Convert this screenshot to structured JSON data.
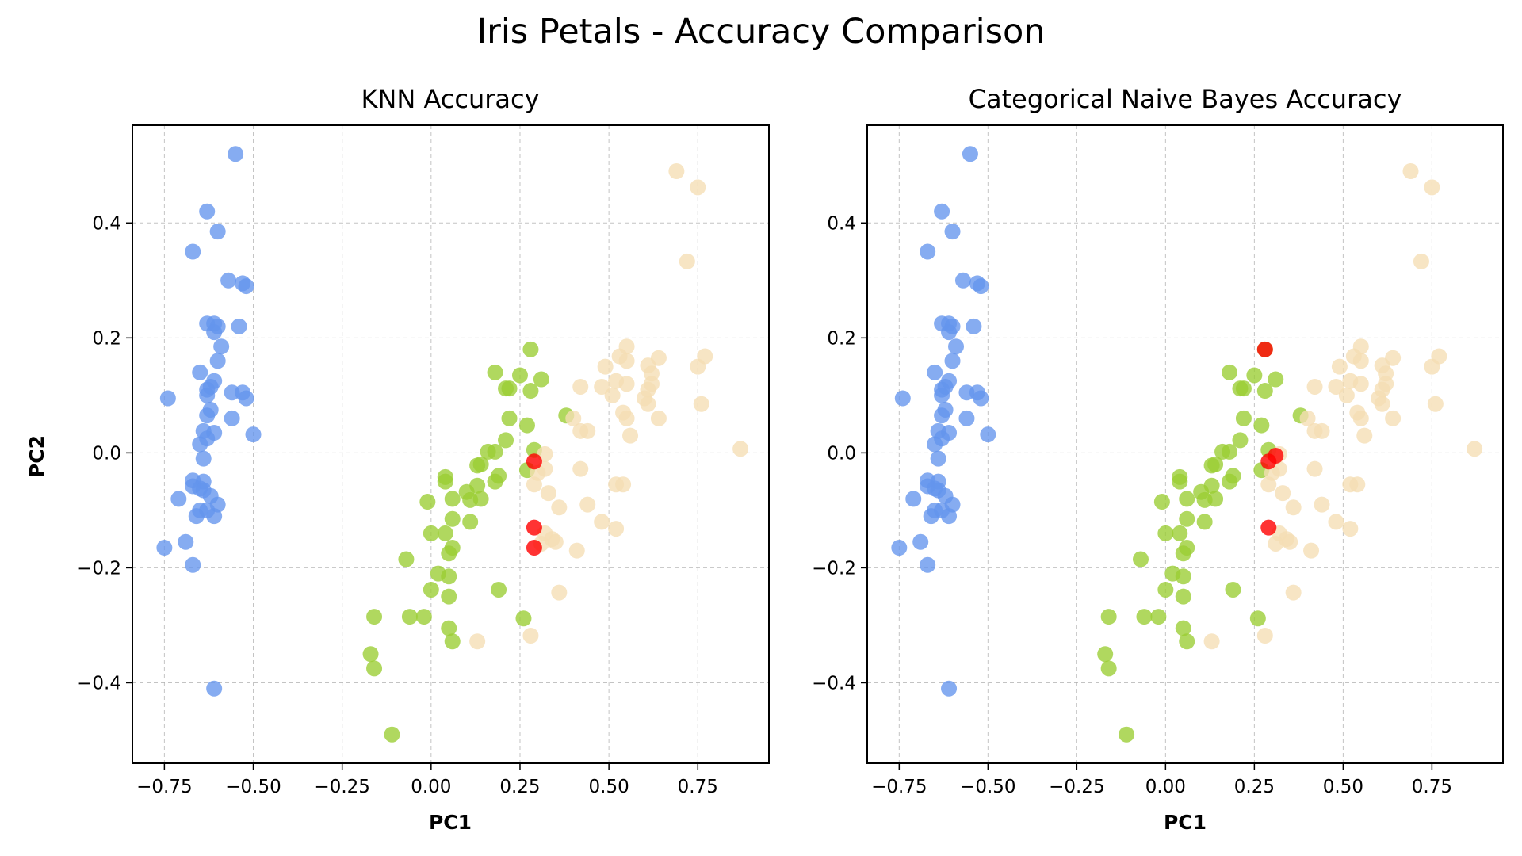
{
  "figure": {
    "title": "Iris Petals - Accuracy Comparison"
  },
  "colors": {
    "setosa": "#6495ed",
    "versicolor": "#9acd32",
    "virginica": "#f5deb3",
    "misclassified": "#ff0000"
  },
  "chart_data": [
    {
      "type": "scatter",
      "title": "KNN Accuracy",
      "xlabel": "PC1",
      "ylabel": "PC2",
      "xlim": [
        -0.84,
        0.95
      ],
      "ylim": [
        -0.54,
        0.57
      ],
      "xticks": [
        -0.75,
        -0.5,
        -0.25,
        0.0,
        0.25,
        0.5,
        0.75
      ],
      "xtick_labels": [
        "−0.75",
        "−0.50",
        "−0.25",
        "0.00",
        "0.25",
        "0.50",
        "0.75"
      ],
      "yticks": [
        -0.4,
        -0.2,
        0.0,
        0.2,
        0.4
      ],
      "ytick_labels": [
        "−0.4",
        "−0.2",
        "0.0",
        "0.2",
        "0.4"
      ],
      "grid": true,
      "misclassified": [
        [
          0.29,
          -0.015
        ],
        [
          0.29,
          -0.13
        ],
        [
          0.29,
          -0.165
        ]
      ]
    },
    {
      "type": "scatter",
      "title": "Categorical Naive Bayes Accuracy",
      "xlabel": "PC1",
      "ylabel": "",
      "xlim": [
        -0.84,
        0.95
      ],
      "ylim": [
        -0.54,
        0.57
      ],
      "xticks": [
        -0.75,
        -0.5,
        -0.25,
        0.0,
        0.25,
        0.5,
        0.75
      ],
      "xtick_labels": [
        "−0.75",
        "−0.50",
        "−0.25",
        "0.00",
        "0.25",
        "0.50",
        "0.75"
      ],
      "yticks": [
        -0.4,
        -0.2,
        0.0,
        0.2,
        0.4
      ],
      "ytick_labels": [
        "−0.4",
        "−0.2",
        "0.0",
        "0.2",
        "0.4"
      ],
      "grid": true,
      "misclassified": [
        [
          0.28,
          0.18
        ],
        [
          0.31,
          -0.005
        ],
        [
          0.29,
          -0.015
        ],
        [
          0.29,
          -0.13
        ]
      ]
    }
  ],
  "points": {
    "setosa": [
      [
        -0.55,
        0.52
      ],
      [
        -0.63,
        0.42
      ],
      [
        -0.6,
        0.385
      ],
      [
        -0.67,
        0.35
      ],
      [
        -0.57,
        0.3
      ],
      [
        -0.53,
        0.295
      ],
      [
        -0.52,
        0.29
      ],
      [
        -0.63,
        0.225
      ],
      [
        -0.61,
        0.225
      ],
      [
        -0.6,
        0.22
      ],
      [
        -0.54,
        0.22
      ],
      [
        -0.61,
        0.21
      ],
      [
        -0.59,
        0.185
      ],
      [
        -0.6,
        0.16
      ],
      [
        -0.65,
        0.14
      ],
      [
        -0.61,
        0.125
      ],
      [
        -0.62,
        0.115
      ],
      [
        -0.63,
        0.11
      ],
      [
        -0.56,
        0.105
      ],
      [
        -0.53,
        0.105
      ],
      [
        -0.52,
        0.095
      ],
      [
        -0.63,
        0.1
      ],
      [
        -0.74,
        0.095
      ],
      [
        -0.62,
        0.075
      ],
      [
        -0.63,
        0.065
      ],
      [
        -0.56,
        0.06
      ],
      [
        -0.64,
        0.038
      ],
      [
        -0.61,
        0.035
      ],
      [
        -0.5,
        0.032
      ],
      [
        -0.63,
        0.025
      ],
      [
        -0.65,
        0.015
      ],
      [
        -0.64,
        -0.01
      ],
      [
        -0.67,
        -0.048
      ],
      [
        -0.64,
        -0.05
      ],
      [
        -0.67,
        -0.058
      ],
      [
        -0.65,
        -0.062
      ],
      [
        -0.64,
        -0.065
      ],
      [
        -0.62,
        -0.075
      ],
      [
        -0.71,
        -0.08
      ],
      [
        -0.6,
        -0.09
      ],
      [
        -0.65,
        -0.1
      ],
      [
        -0.63,
        -0.1
      ],
      [
        -0.66,
        -0.11
      ],
      [
        -0.61,
        -0.11
      ],
      [
        -0.69,
        -0.155
      ],
      [
        -0.75,
        -0.165
      ],
      [
        -0.67,
        -0.195
      ],
      [
        -0.61,
        -0.41
      ]
    ],
    "versicolor": [
      [
        0.28,
        0.18
      ],
      [
        0.18,
        0.14
      ],
      [
        0.25,
        0.135
      ],
      [
        0.31,
        0.128
      ],
      [
        0.21,
        0.112
      ],
      [
        0.22,
        0.112
      ],
      [
        0.28,
        0.108
      ],
      [
        0.38,
        0.065
      ],
      [
        0.22,
        0.06
      ],
      [
        0.27,
        0.048
      ],
      [
        0.21,
        0.022
      ],
      [
        0.29,
        0.005
      ],
      [
        0.16,
        0.002
      ],
      [
        0.18,
        0.002
      ],
      [
        0.14,
        -0.02
      ],
      [
        0.13,
        -0.022
      ],
      [
        0.27,
        -0.03
      ],
      [
        0.19,
        -0.04
      ],
      [
        0.04,
        -0.042
      ],
      [
        0.18,
        -0.05
      ],
      [
        0.04,
        -0.05
      ],
      [
        0.13,
        -0.057
      ],
      [
        0.1,
        -0.068
      ],
      [
        0.06,
        -0.08
      ],
      [
        0.14,
        -0.08
      ],
      [
        0.11,
        -0.082
      ],
      [
        -0.01,
        -0.085
      ],
      [
        0.06,
        -0.115
      ],
      [
        0.11,
        -0.12
      ],
      [
        0.04,
        -0.14
      ],
      [
        0.0,
        -0.14
      ],
      [
        0.06,
        -0.165
      ],
      [
        0.05,
        -0.175
      ],
      [
        -0.07,
        -0.185
      ],
      [
        0.02,
        -0.21
      ],
      [
        0.05,
        -0.215
      ],
      [
        0.0,
        -0.238
      ],
      [
        0.19,
        -0.238
      ],
      [
        0.05,
        -0.25
      ],
      [
        -0.16,
        -0.285
      ],
      [
        -0.06,
        -0.285
      ],
      [
        -0.02,
        -0.285
      ],
      [
        0.26,
        -0.288
      ],
      [
        0.05,
        -0.305
      ],
      [
        0.06,
        -0.328
      ],
      [
        -0.17,
        -0.35
      ],
      [
        -0.16,
        -0.375
      ],
      [
        -0.11,
        -0.49
      ]
    ],
    "virginica": [
      [
        0.69,
        0.49
      ],
      [
        0.75,
        0.462
      ],
      [
        0.72,
        0.333
      ],
      [
        0.55,
        0.185
      ],
      [
        0.64,
        0.165
      ],
      [
        0.77,
        0.168
      ],
      [
        0.53,
        0.168
      ],
      [
        0.55,
        0.16
      ],
      [
        0.61,
        0.152
      ],
      [
        0.49,
        0.15
      ],
      [
        0.75,
        0.15
      ],
      [
        0.62,
        0.138
      ],
      [
        0.52,
        0.125
      ],
      [
        0.55,
        0.12
      ],
      [
        0.62,
        0.12
      ],
      [
        0.48,
        0.115
      ],
      [
        0.42,
        0.115
      ],
      [
        0.61,
        0.11
      ],
      [
        0.51,
        0.1
      ],
      [
        0.6,
        0.095
      ],
      [
        0.61,
        0.085
      ],
      [
        0.76,
        0.085
      ],
      [
        0.54,
        0.07
      ],
      [
        0.4,
        0.06
      ],
      [
        0.55,
        0.06
      ],
      [
        0.64,
        0.06
      ],
      [
        0.42,
        0.038
      ],
      [
        0.44,
        0.038
      ],
      [
        0.56,
        0.03
      ],
      [
        0.87,
        0.007
      ],
      [
        0.32,
        -0.002
      ],
      [
        0.32,
        -0.028
      ],
      [
        0.42,
        -0.028
      ],
      [
        0.3,
        -0.035
      ],
      [
        0.29,
        -0.055
      ],
      [
        0.52,
        -0.055
      ],
      [
        0.54,
        -0.055
      ],
      [
        0.33,
        -0.07
      ],
      [
        0.44,
        -0.09
      ],
      [
        0.36,
        -0.095
      ],
      [
        0.48,
        -0.12
      ],
      [
        0.52,
        -0.132
      ],
      [
        0.32,
        -0.14
      ],
      [
        0.34,
        -0.15
      ],
      [
        0.35,
        -0.155
      ],
      [
        0.31,
        -0.158
      ],
      [
        0.41,
        -0.17
      ],
      [
        0.36,
        -0.243
      ],
      [
        0.13,
        -0.328
      ],
      [
        0.28,
        -0.318
      ]
    ]
  }
}
